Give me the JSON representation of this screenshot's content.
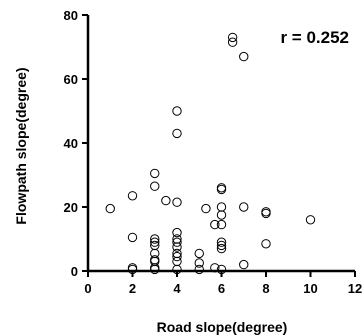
{
  "chart_data": {
    "type": "scatter",
    "xlabel": "Road slope(degree)",
    "ylabel": "Flowpath slope(degree)",
    "xlim": [
      0,
      12
    ],
    "ylim": [
      0,
      80
    ],
    "xticks": [
      "0",
      "2",
      "4",
      "6",
      "8",
      "10",
      "12"
    ],
    "yticks": [
      "0",
      "20",
      "40",
      "60",
      "80"
    ],
    "grid": false,
    "marker": "open-circle",
    "annotation": "r = 0.252",
    "series": [
      {
        "points": [
          [
            1,
            19.5
          ],
          [
            2,
            23.5
          ],
          [
            2,
            10.5
          ],
          [
            2,
            1.0
          ],
          [
            2,
            0.5
          ],
          [
            3,
            30.5
          ],
          [
            3,
            26.5
          ],
          [
            3,
            10.0
          ],
          [
            3,
            9.0
          ],
          [
            3,
            8.0
          ],
          [
            3,
            5.5
          ],
          [
            3,
            3.5
          ],
          [
            3,
            3.0
          ],
          [
            3,
            1.0
          ],
          [
            3,
            0.5
          ],
          [
            3.5,
            22.0
          ],
          [
            4,
            50.0
          ],
          [
            4,
            43.0
          ],
          [
            4,
            21.5
          ],
          [
            4,
            12.0
          ],
          [
            4,
            10.0
          ],
          [
            4,
            9.0
          ],
          [
            4,
            7.5
          ],
          [
            4,
            5.5
          ],
          [
            4,
            4.5
          ],
          [
            4,
            3.0
          ],
          [
            4,
            0.5
          ],
          [
            5,
            5.5
          ],
          [
            5,
            2.5
          ],
          [
            5,
            0.5
          ],
          [
            5.3,
            19.5
          ],
          [
            5.7,
            14.5
          ],
          [
            5.7,
            1.0
          ],
          [
            6,
            26.0
          ],
          [
            6,
            25.5
          ],
          [
            6,
            20.0
          ],
          [
            6,
            17.5
          ],
          [
            6,
            14.5
          ],
          [
            6,
            9.0
          ],
          [
            6,
            8.0
          ],
          [
            6,
            7.0
          ],
          [
            6,
            0.5
          ],
          [
            6.5,
            73.0
          ],
          [
            6.5,
            71.5
          ],
          [
            7,
            67.0
          ],
          [
            7,
            20.0
          ],
          [
            7,
            2.0
          ],
          [
            8,
            18.5
          ],
          [
            8,
            18.0
          ],
          [
            8,
            8.5
          ],
          [
            10,
            16.0
          ]
        ]
      }
    ]
  }
}
